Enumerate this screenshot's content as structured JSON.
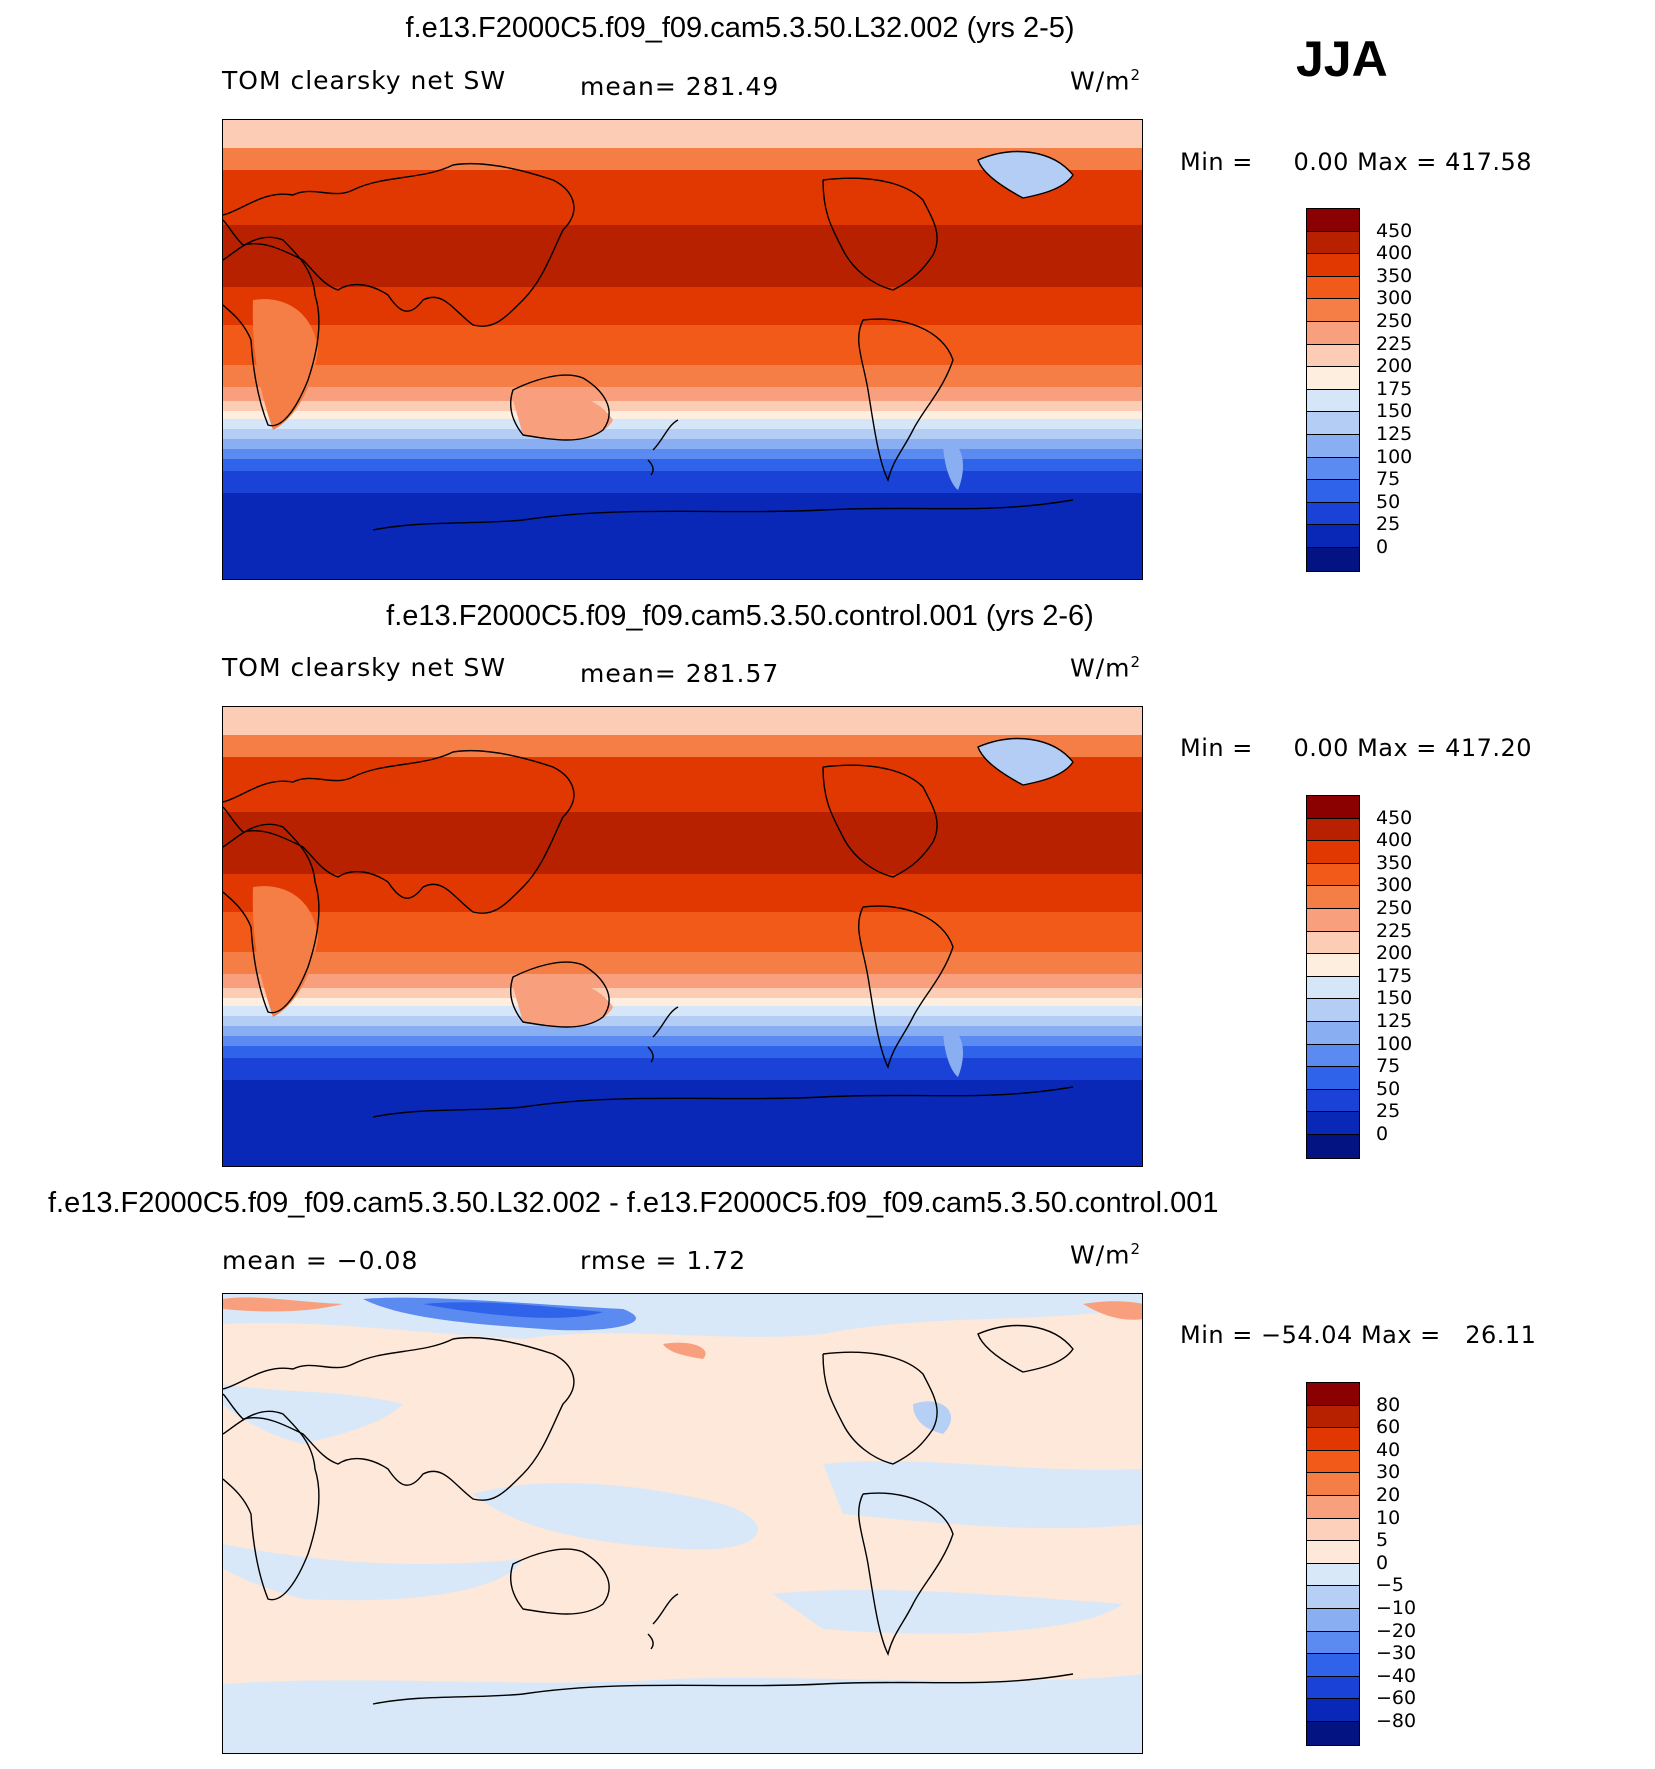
{
  "season": "JJA",
  "panels": [
    {
      "title": "f.e13.F2000C5.f09_f09.cam5.3.50.L32.002 (yrs 2-5)",
      "left_label": "TOM clearsky net SW",
      "center_label": "mean= 281.49",
      "units_base": "W/m",
      "units_exp": "2",
      "min_label": "Min =",
      "min_value": "0.00",
      "max_label": "Max =",
      "max_value": "417.58",
      "colorbar": {
        "labels": [
          "450",
          "400",
          "350",
          "300",
          "250",
          "225",
          "200",
          "175",
          "150",
          "125",
          "100",
          "75",
          "50",
          "25",
          "0"
        ],
        "colors": [
          "#8b0000",
          "#b82100",
          "#e03800",
          "#f25a1a",
          "#f57e47",
          "#f8a07d",
          "#fcccb4",
          "#fdeee0",
          "#d5e6f8",
          "#b3cdf5",
          "#8aaef2",
          "#5b8af0",
          "#2f63ea",
          "#1a42d6",
          "#0a28b8",
          "#031482"
        ]
      }
    },
    {
      "title": "f.e13.F2000C5.f09_f09.cam5.3.50.control.001 (yrs 2-6)",
      "left_label": "TOM clearsky net SW",
      "center_label": "mean= 281.57",
      "units_base": "W/m",
      "units_exp": "2",
      "min_label": "Min =",
      "min_value": "0.00",
      "max_label": "Max =",
      "max_value": "417.20",
      "colorbar": {
        "labels": [
          "450",
          "400",
          "350",
          "300",
          "250",
          "225",
          "200",
          "175",
          "150",
          "125",
          "100",
          "75",
          "50",
          "25",
          "0"
        ],
        "colors": [
          "#8b0000",
          "#b82100",
          "#e03800",
          "#f25a1a",
          "#f57e47",
          "#f8a07d",
          "#fcccb4",
          "#fdeee0",
          "#d5e6f8",
          "#b3cdf5",
          "#8aaef2",
          "#5b8af0",
          "#2f63ea",
          "#1a42d6",
          "#0a28b8",
          "#031482"
        ]
      }
    },
    {
      "title": "f.e13.F2000C5.f09_f09.cam5.3.50.L32.002 - f.e13.F2000C5.f09_f09.cam5.3.50.control.001",
      "left_label": "mean =   −0.08",
      "center_label": "rmse =    1.72",
      "units_base": "W/m",
      "units_exp": "2",
      "min_label": "Min =",
      "min_value": "−54.04",
      "max_label": "Max =",
      "max_value": "26.11",
      "colorbar": {
        "labels": [
          "80",
          "60",
          "40",
          "30",
          "20",
          "10",
          "5",
          "0",
          "−5",
          "−10",
          "−20",
          "−30",
          "−40",
          "−60",
          "−80"
        ],
        "colors": [
          "#8b0000",
          "#b82100",
          "#e03800",
          "#f25a1a",
          "#f57e47",
          "#f8a07d",
          "#fcd0bb",
          "#fde8da",
          "#d8e8f8",
          "#b6d0f5",
          "#8aaef2",
          "#5b8af0",
          "#2f63ea",
          "#1a42d6",
          "#0a28b8",
          "#031482"
        ]
      }
    }
  ]
}
